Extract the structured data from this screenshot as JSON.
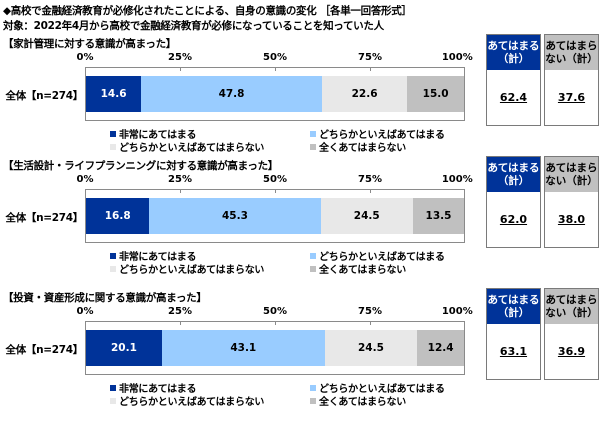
{
  "header": {
    "title": "◆高校で金融経済教育が必修化されたことによる、自身の意識の変化 ［各単一回答形式］",
    "subtitle": "対象：2022年4月から高校で金融経済教育が必修になっていることを知っていた人"
  },
  "colors": {
    "very_applies": "#003399",
    "somewhat_applies": "#99ccff",
    "somewhat_not": "#e8e8e8",
    "not_at_all": "#c0c0c0",
    "box_applies_header": "#003399",
    "box_not_header": "#c0c0c0"
  },
  "axis": {
    "ticks": [
      "0%",
      "25%",
      "50%",
      "75%",
      "100%"
    ]
  },
  "legend": {
    "items": [
      {
        "label": "非常にあてはまる"
      },
      {
        "label": "どちらかといえばあてはまる"
      },
      {
        "label": "どちらかといえばあてはまらない"
      },
      {
        "label": "全くあてはまらない"
      }
    ]
  },
  "summary_headers": {
    "applies": "あてはまる\n（計）",
    "not_applies": "あてはまら\nない（計）"
  },
  "panels": [
    {
      "title": "【家計管理に対する意識が高まった】",
      "row_label": "全体【n=274】",
      "values": [
        "14.6",
        "47.8",
        "22.6",
        "15.0"
      ],
      "applies_total": "62.4",
      "not_applies_total": "37.6"
    },
    {
      "title": "【生活設計・ライフプランニングに対する意識が高まった】",
      "row_label": "全体【n=274】",
      "values": [
        "16.8",
        "45.3",
        "24.5",
        "13.5"
      ],
      "applies_total": "62.0",
      "not_applies_total": "38.0"
    },
    {
      "title": "【投資・資産形成に関する意識が高まった】",
      "row_label": "全体【n=274】",
      "values": [
        "20.1",
        "43.1",
        "24.5",
        "12.4"
      ],
      "applies_total": "63.1",
      "not_applies_total": "36.9"
    }
  ],
  "chart_data": [
    {
      "type": "bar",
      "orientation": "horizontal-stacked-100",
      "title": "【家計管理に対する意識が高まった】",
      "categories": [
        "全体【n=274】"
      ],
      "series": [
        {
          "name": "非常にあてはまる",
          "values": [
            14.6
          ]
        },
        {
          "name": "どちらかといえばあてはまる",
          "values": [
            47.8
          ]
        },
        {
          "name": "どちらかといえばあてはまらない",
          "values": [
            22.6
          ]
        },
        {
          "name": "全くあてはまらない",
          "values": [
            15.0
          ]
        }
      ],
      "totals": {
        "あてはまる（計）": 62.4,
        "あてはまらない（計）": 37.6
      },
      "xlim": [
        0,
        100
      ],
      "xticks": [
        "0%",
        "25%",
        "50%",
        "75%",
        "100%"
      ],
      "legend_position": "bottom"
    },
    {
      "type": "bar",
      "orientation": "horizontal-stacked-100",
      "title": "【生活設計・ライフプランニングに対する意識が高まった】",
      "categories": [
        "全体【n=274】"
      ],
      "series": [
        {
          "name": "非常にあてはまる",
          "values": [
            16.8
          ]
        },
        {
          "name": "どちらかといえばあてはまる",
          "values": [
            45.3
          ]
        },
        {
          "name": "どちらかといえばあてはまらない",
          "values": [
            24.5
          ]
        },
        {
          "name": "全くあてはまらない",
          "values": [
            13.5
          ]
        }
      ],
      "totals": {
        "あてはまる（計）": 62.0,
        "あてはまらない（計）": 38.0
      },
      "xlim": [
        0,
        100
      ],
      "xticks": [
        "0%",
        "25%",
        "50%",
        "75%",
        "100%"
      ],
      "legend_position": "bottom"
    },
    {
      "type": "bar",
      "orientation": "horizontal-stacked-100",
      "title": "【投資・資産形成に関する意識が高まった】",
      "categories": [
        "全体【n=274】"
      ],
      "series": [
        {
          "name": "非常にあてはまる",
          "values": [
            20.1
          ]
        },
        {
          "name": "どちらかといえばあてはまる",
          "values": [
            43.1
          ]
        },
        {
          "name": "どちらかといえばあてはまらない",
          "values": [
            24.5
          ]
        },
        {
          "name": "全くあてはまらない",
          "values": [
            12.4
          ]
        }
      ],
      "totals": {
        "あてはまる（計）": 63.1,
        "あてはまらない（計）": 36.9
      },
      "xlim": [
        0,
        100
      ],
      "xticks": [
        "0%",
        "25%",
        "50%",
        "75%",
        "100%"
      ],
      "legend_position": "bottom"
    }
  ]
}
